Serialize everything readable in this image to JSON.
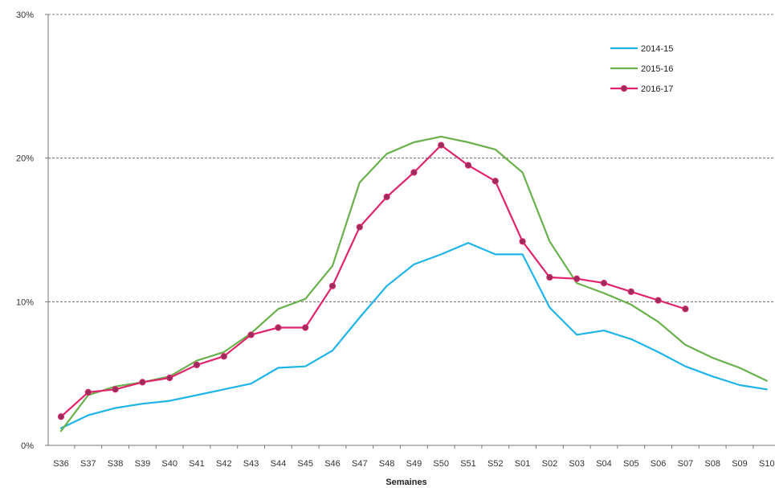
{
  "chart_data": {
    "type": "line",
    "xlabel": "Semaines",
    "ylabel": "",
    "ylim": [
      0,
      30
    ],
    "y_ticks": [
      0,
      10,
      20,
      30
    ],
    "y_tick_labels": [
      "0%",
      "10%",
      "20%",
      "30%"
    ],
    "grid": "horizontal dashed",
    "legend_position": "top-right",
    "categories": [
      "S36",
      "S37",
      "S38",
      "S39",
      "S40",
      "S41",
      "S42",
      "S43",
      "S44",
      "S45",
      "S46",
      "S47",
      "S48",
      "S49",
      "S50",
      "S51",
      "S52",
      "S01",
      "S02",
      "S03",
      "S04",
      "S05",
      "S06",
      "S07",
      "S08",
      "S09",
      "S10"
    ],
    "series": [
      {
        "name": "2014-15",
        "color": "#1fb4e8",
        "markers": false,
        "values": [
          1.2,
          2.1,
          2.6,
          2.9,
          3.1,
          3.5,
          3.9,
          4.3,
          5.4,
          5.5,
          6.6,
          8.9,
          11.1,
          12.6,
          13.3,
          14.1,
          13.3,
          13.3,
          9.6,
          7.7,
          8.0,
          7.4,
          6.5,
          5.5,
          4.8,
          4.2,
          3.9
        ]
      },
      {
        "name": "2015-16",
        "color": "#6ab04c",
        "markers": false,
        "values": [
          1.0,
          3.5,
          4.1,
          4.4,
          4.8,
          5.9,
          6.5,
          7.8,
          9.5,
          10.2,
          12.5,
          18.3,
          20.3,
          21.1,
          21.5,
          21.1,
          20.6,
          19.0,
          14.2,
          11.3,
          10.6,
          9.8,
          8.6,
          7.0,
          6.1,
          5.4,
          4.5
        ]
      },
      {
        "name": "2016-17",
        "color": "#e0246c",
        "markers": true,
        "values": [
          2.0,
          3.7,
          3.9,
          4.4,
          4.7,
          5.6,
          6.2,
          7.7,
          8.2,
          8.2,
          11.1,
          15.2,
          17.3,
          19.0,
          20.9,
          19.5,
          18.4,
          14.2,
          11.7,
          11.6,
          11.3,
          10.7,
          10.1,
          9.5,
          null,
          null,
          null
        ]
      }
    ]
  }
}
